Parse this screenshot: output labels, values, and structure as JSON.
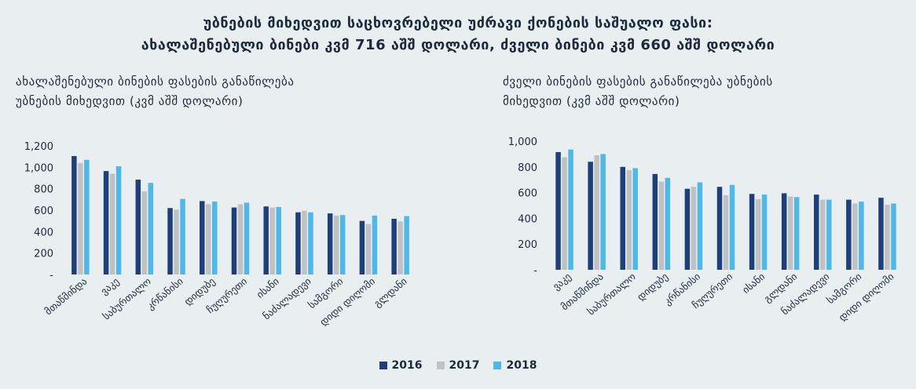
{
  "header": {
    "title_line1": "უბნების მიხედვით საცხოვრებელი უძრავი ქონების საშუალო ფასი:",
    "title_line2": "ახალაშენებული ბინები კვმ 716 აშშ დოლარი, ძველი ბინები კვმ 660 აშშ დოლარი"
  },
  "colors": {
    "2016": "#1f3f78",
    "2017": "#bfc1c3",
    "2018": "#4fb8e6"
  },
  "legend": [
    "2016",
    "2017",
    "2018"
  ],
  "chart_data": [
    {
      "type": "bar",
      "title_line1": "ახალაშენებული ბინების ფასების განაწილება",
      "title_line2": "უბნების მიხედვით (კვმ აშშ დოლარი)",
      "categories": [
        "მთაწმინდა",
        "ვაკე",
        "საბურთალო",
        "კრწანისი",
        "დიდუბე",
        "ჩუღურეთი",
        "ისანი",
        "ნაძალადევი",
        "სამგორი",
        "დიდი დიღომი",
        "გლდანი"
      ],
      "series": [
        {
          "name": "2016",
          "values": [
            1105,
            965,
            885,
            620,
            685,
            625,
            635,
            580,
            570,
            500,
            520
          ]
        },
        {
          "name": "2017",
          "values": [
            1040,
            940,
            775,
            605,
            655,
            655,
            625,
            595,
            550,
            470,
            495
          ]
        },
        {
          "name": "2018",
          "values": [
            1070,
            1010,
            855,
            705,
            680,
            670,
            630,
            580,
            555,
            550,
            545
          ]
        }
      ],
      "yticks": [
        "-",
        "200",
        "400",
        "600",
        "800",
        "1,000",
        "1,200"
      ],
      "ylim": [
        0,
        1200
      ]
    },
    {
      "type": "bar",
      "title_line1": "ძველი ბინების ფასების განაწილება უბნების",
      "title_line2": "მიხედვით (კვმ აშშ დოლარი)",
      "categories": [
        "ვაკე",
        "მთაწმინდა",
        "საბურთალო",
        "დიდუბე",
        "კრწანისი",
        "ჩუღურეთი",
        "ისანი",
        "გლდანი",
        "ნაძალადევი",
        "სამგორი",
        "დიდი დიღომი"
      ],
      "series": [
        {
          "name": "2016",
          "values": [
            915,
            840,
            800,
            745,
            630,
            645,
            590,
            595,
            585,
            545,
            560
          ]
        },
        {
          "name": "2017",
          "values": [
            875,
            890,
            775,
            685,
            645,
            580,
            550,
            570,
            545,
            515,
            505
          ]
        },
        {
          "name": "2018",
          "values": [
            935,
            900,
            790,
            715,
            680,
            660,
            585,
            565,
            545,
            530,
            515
          ]
        }
      ],
      "yticks": [
        "-",
        "200",
        "400",
        "600",
        "800",
        "1,000"
      ],
      "ylim": [
        0,
        1000
      ]
    }
  ]
}
